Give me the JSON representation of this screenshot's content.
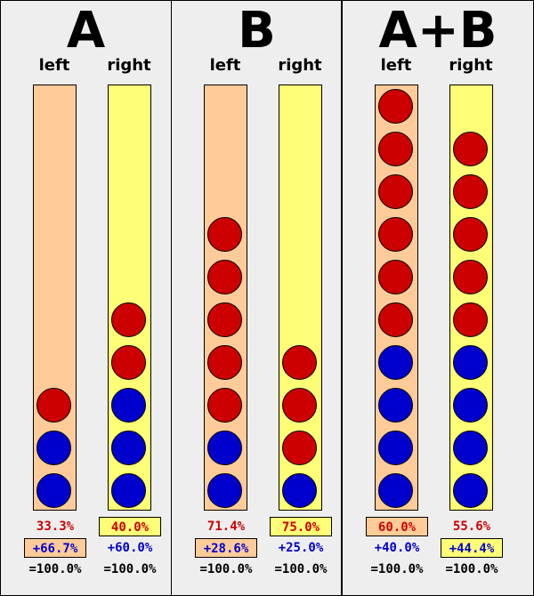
{
  "colors": {
    "left_tube": "#ffcc99",
    "right_tube": "#ffff77",
    "red_ball": "#cc0000",
    "blue_ball": "#0000cc",
    "red_text": "#cc0000",
    "blue_text": "#0000cc"
  },
  "panels": [
    {
      "title": "A",
      "columns": [
        {
          "label": "left",
          "tube": "left",
          "blue": 2,
          "red": 1,
          "red_pct": "33.3%",
          "blue_pct": "+66.7%",
          "total": "=100.0%",
          "boxed": "blue"
        },
        {
          "label": "right",
          "tube": "right",
          "blue": 3,
          "red": 2,
          "red_pct": "40.0%",
          "blue_pct": "+60.0%",
          "total": "=100.0%",
          "boxed": "red"
        }
      ]
    },
    {
      "title": "B",
      "columns": [
        {
          "label": "left",
          "tube": "left",
          "blue": 2,
          "red": 5,
          "red_pct": "71.4%",
          "blue_pct": "+28.6%",
          "total": "=100.0%",
          "boxed": "blue"
        },
        {
          "label": "right",
          "tube": "right",
          "blue": 1,
          "red": 3,
          "red_pct": "75.0%",
          "blue_pct": "+25.0%",
          "total": "=100.0%",
          "boxed": "red"
        }
      ]
    },
    {
      "title": "A+B",
      "columns": [
        {
          "label": "left",
          "tube": "left",
          "blue": 4,
          "red": 6,
          "red_pct": "60.0%",
          "blue_pct": "+40.0%",
          "total": "=100.0%",
          "boxed": "red"
        },
        {
          "label": "right",
          "tube": "right",
          "blue": 4,
          "red": 5,
          "red_pct": "55.6%",
          "blue_pct": "+44.4%",
          "total": "=100.0%",
          "boxed": "blue"
        }
      ]
    }
  ]
}
